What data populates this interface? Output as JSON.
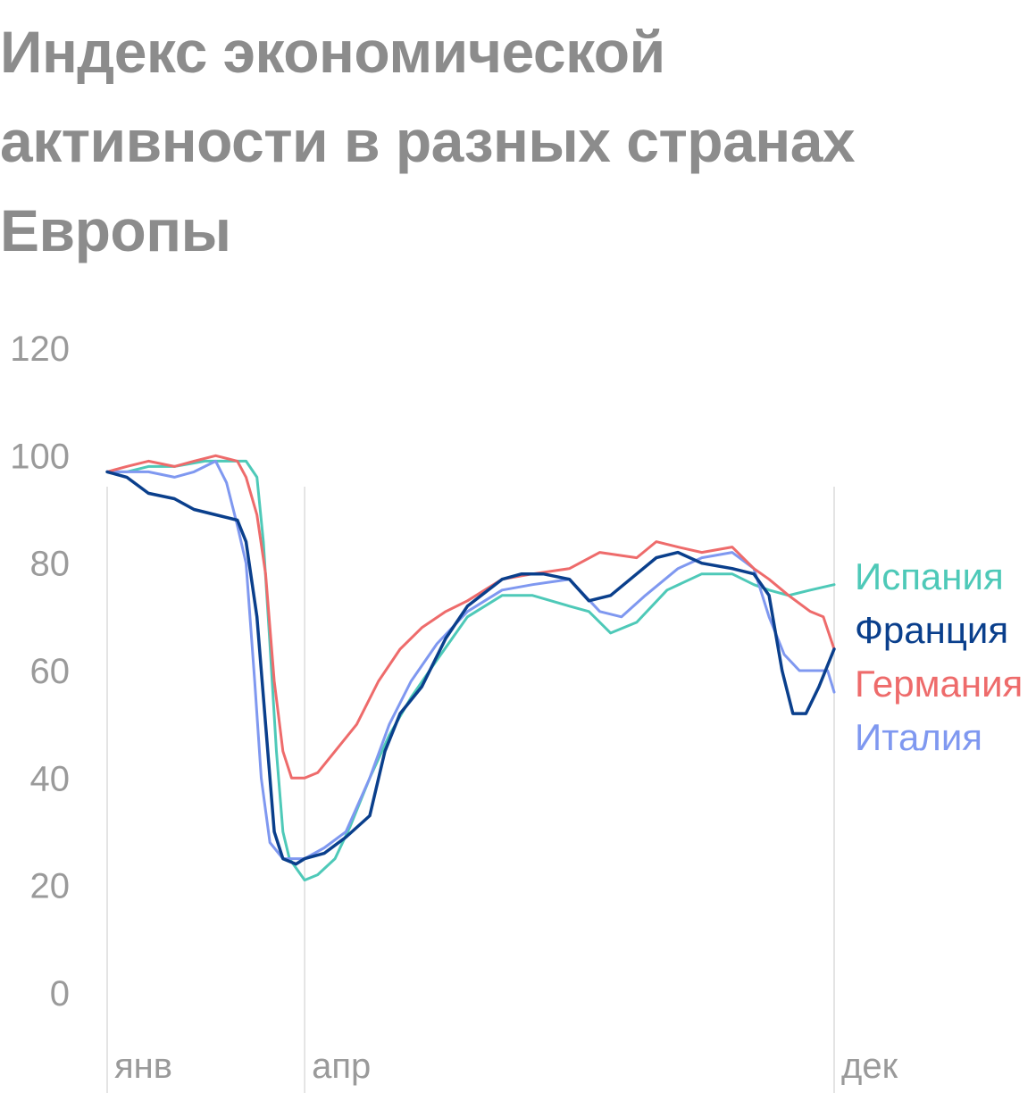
{
  "chart_data": {
    "type": "line",
    "title": "Индекс экономической активности в разных странах Европы",
    "xlabel": "",
    "ylabel": "",
    "ylim": [
      0,
      120
    ],
    "y_ticks": [
      "0",
      "20",
      "40",
      "60",
      "80",
      "100",
      "120"
    ],
    "x_range": [
      "2020-01-01",
      "2020-12-01"
    ],
    "x_ticks": [
      {
        "date": "2020-01-01",
        "label": "янв"
      },
      {
        "date": "2020-04-01",
        "label": "апр"
      },
      {
        "date": "2020-12-01",
        "label": "дек"
      }
    ],
    "grid": "vertical lines at x ticks",
    "legend": "right, at line ends",
    "series": [
      {
        "name": "Испания",
        "color": "#4ec9b8",
        "points": [
          [
            "2020-01-01",
            97
          ],
          [
            "2020-01-10",
            97
          ],
          [
            "2020-01-20",
            98
          ],
          [
            "2020-02-01",
            98
          ],
          [
            "2020-02-15",
            99
          ],
          [
            "2020-02-25",
            99
          ],
          [
            "2020-03-05",
            99
          ],
          [
            "2020-03-10",
            96
          ],
          [
            "2020-03-13",
            84
          ],
          [
            "2020-03-16",
            65
          ],
          [
            "2020-03-19",
            45
          ],
          [
            "2020-03-22",
            30
          ],
          [
            "2020-03-25",
            25
          ],
          [
            "2020-04-01",
            21
          ],
          [
            "2020-04-07",
            22
          ],
          [
            "2020-04-15",
            25
          ],
          [
            "2020-04-22",
            31
          ],
          [
            "2020-05-01",
            40
          ],
          [
            "2020-05-10",
            48
          ],
          [
            "2020-05-20",
            55
          ],
          [
            "2020-06-01",
            62
          ],
          [
            "2020-06-15",
            70
          ],
          [
            "2020-07-01",
            74
          ],
          [
            "2020-07-15",
            74
          ],
          [
            "2020-08-01",
            72
          ],
          [
            "2020-08-10",
            71
          ],
          [
            "2020-08-20",
            67
          ],
          [
            "2020-09-01",
            69
          ],
          [
            "2020-09-15",
            75
          ],
          [
            "2020-10-01",
            78
          ],
          [
            "2020-10-15",
            78
          ],
          [
            "2020-10-25",
            76
          ],
          [
            "2020-11-01",
            75
          ],
          [
            "2020-11-10",
            74
          ],
          [
            "2020-11-20",
            75
          ],
          [
            "2020-12-01",
            76
          ]
        ]
      },
      {
        "name": "Франция",
        "color": "#0a3f8c",
        "points": [
          [
            "2020-01-01",
            97
          ],
          [
            "2020-01-10",
            96
          ],
          [
            "2020-01-20",
            93
          ],
          [
            "2020-02-01",
            92
          ],
          [
            "2020-02-10",
            90
          ],
          [
            "2020-02-20",
            89
          ],
          [
            "2020-03-01",
            88
          ],
          [
            "2020-03-05",
            84
          ],
          [
            "2020-03-10",
            70
          ],
          [
            "2020-03-14",
            50
          ],
          [
            "2020-03-18",
            30
          ],
          [
            "2020-03-22",
            25
          ],
          [
            "2020-03-28",
            24
          ],
          [
            "2020-04-01",
            25
          ],
          [
            "2020-04-10",
            26
          ],
          [
            "2020-04-20",
            29
          ],
          [
            "2020-05-01",
            33
          ],
          [
            "2020-05-08",
            45
          ],
          [
            "2020-05-15",
            52
          ],
          [
            "2020-05-25",
            57
          ],
          [
            "2020-06-05",
            66
          ],
          [
            "2020-06-15",
            72
          ],
          [
            "2020-07-01",
            77
          ],
          [
            "2020-07-10",
            78
          ],
          [
            "2020-07-20",
            78
          ],
          [
            "2020-08-01",
            77
          ],
          [
            "2020-08-10",
            73
          ],
          [
            "2020-08-20",
            74
          ],
          [
            "2020-09-01",
            78
          ],
          [
            "2020-09-10",
            81
          ],
          [
            "2020-09-20",
            82
          ],
          [
            "2020-10-01",
            80
          ],
          [
            "2020-10-15",
            79
          ],
          [
            "2020-10-25",
            78
          ],
          [
            "2020-11-01",
            74
          ],
          [
            "2020-11-07",
            60
          ],
          [
            "2020-11-12",
            52
          ],
          [
            "2020-11-18",
            52
          ],
          [
            "2020-11-24",
            57
          ],
          [
            "2020-12-01",
            64
          ]
        ]
      },
      {
        "name": "Германия",
        "color": "#ee6b6b",
        "points": [
          [
            "2020-01-01",
            97
          ],
          [
            "2020-01-10",
            98
          ],
          [
            "2020-01-20",
            99
          ],
          [
            "2020-02-01",
            98
          ],
          [
            "2020-02-10",
            99
          ],
          [
            "2020-02-20",
            100
          ],
          [
            "2020-03-01",
            99
          ],
          [
            "2020-03-05",
            96
          ],
          [
            "2020-03-10",
            89
          ],
          [
            "2020-03-14",
            78
          ],
          [
            "2020-03-18",
            58
          ],
          [
            "2020-03-22",
            45
          ],
          [
            "2020-03-26",
            40
          ],
          [
            "2020-04-01",
            40
          ],
          [
            "2020-04-07",
            41
          ],
          [
            "2020-04-15",
            45
          ],
          [
            "2020-04-25",
            50
          ],
          [
            "2020-05-05",
            58
          ],
          [
            "2020-05-15",
            64
          ],
          [
            "2020-05-25",
            68
          ],
          [
            "2020-06-05",
            71
          ],
          [
            "2020-06-15",
            73
          ],
          [
            "2020-07-01",
            77
          ],
          [
            "2020-07-15",
            78
          ],
          [
            "2020-08-01",
            79
          ],
          [
            "2020-08-15",
            82
          ],
          [
            "2020-09-01",
            81
          ],
          [
            "2020-09-10",
            84
          ],
          [
            "2020-09-20",
            83
          ],
          [
            "2020-10-01",
            82
          ],
          [
            "2020-10-15",
            83
          ],
          [
            "2020-10-25",
            79
          ],
          [
            "2020-11-01",
            77
          ],
          [
            "2020-11-10",
            74
          ],
          [
            "2020-11-20",
            71
          ],
          [
            "2020-11-26",
            70
          ],
          [
            "2020-12-01",
            64
          ]
        ]
      },
      {
        "name": "Италия",
        "color": "#7f98f0",
        "points": [
          [
            "2020-01-01",
            97
          ],
          [
            "2020-01-10",
            97
          ],
          [
            "2020-01-20",
            97
          ],
          [
            "2020-02-01",
            96
          ],
          [
            "2020-02-10",
            97
          ],
          [
            "2020-02-20",
            99
          ],
          [
            "2020-02-25",
            95
          ],
          [
            "2020-03-01",
            87
          ],
          [
            "2020-03-05",
            80
          ],
          [
            "2020-03-09",
            58
          ],
          [
            "2020-03-12",
            40
          ],
          [
            "2020-03-16",
            28
          ],
          [
            "2020-03-22",
            25
          ],
          [
            "2020-04-01",
            25
          ],
          [
            "2020-04-10",
            27
          ],
          [
            "2020-04-20",
            30
          ],
          [
            "2020-05-01",
            40
          ],
          [
            "2020-05-10",
            50
          ],
          [
            "2020-05-20",
            58
          ],
          [
            "2020-06-01",
            65
          ],
          [
            "2020-06-15",
            71
          ],
          [
            "2020-07-01",
            75
          ],
          [
            "2020-07-15",
            76
          ],
          [
            "2020-08-01",
            77
          ],
          [
            "2020-08-15",
            71
          ],
          [
            "2020-08-25",
            70
          ],
          [
            "2020-09-05",
            74
          ],
          [
            "2020-09-20",
            79
          ],
          [
            "2020-10-01",
            81
          ],
          [
            "2020-10-15",
            82
          ],
          [
            "2020-10-25",
            79
          ],
          [
            "2020-11-01",
            70
          ],
          [
            "2020-11-08",
            63
          ],
          [
            "2020-11-15",
            60
          ],
          [
            "2020-11-22",
            60
          ],
          [
            "2020-11-28",
            60
          ],
          [
            "2020-12-01",
            56
          ]
        ]
      }
    ]
  }
}
